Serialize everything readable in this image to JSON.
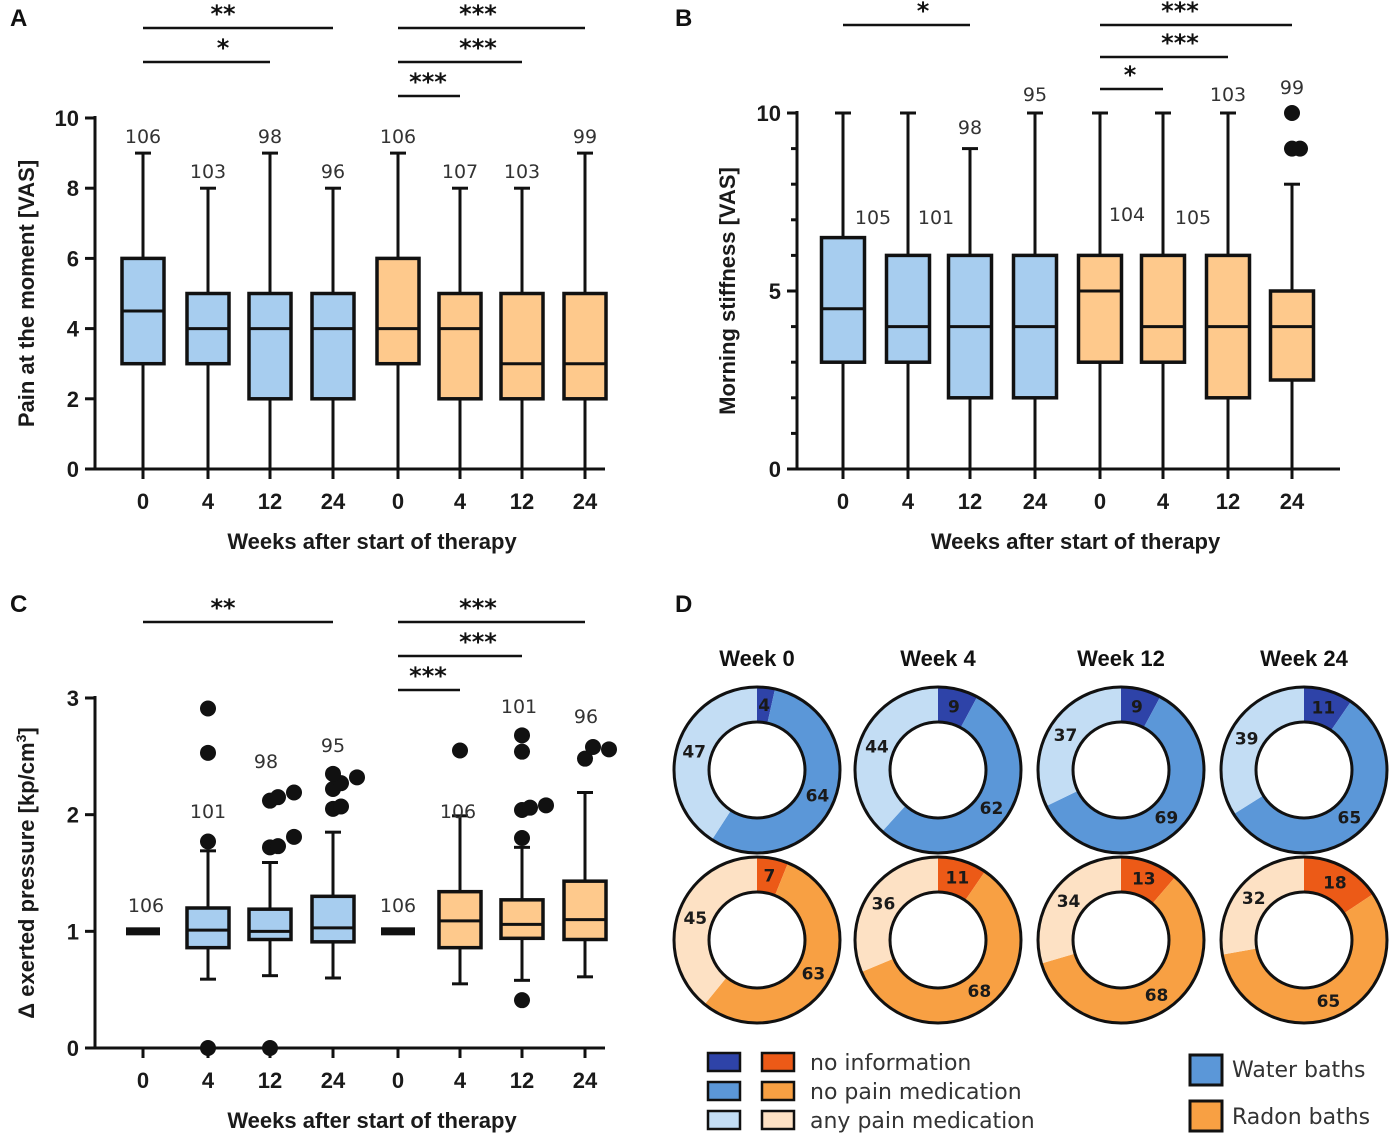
{
  "colors": {
    "water_box": "#a7cdef",
    "radon_box": "#fec98c",
    "water_no_info": "#2e43a8",
    "water_no_med": "#5b97d8",
    "water_any_med": "#c3ddf4",
    "radon_no_info": "#ec5a17",
    "radon_no_med": "#f8a043",
    "radon_any_med": "#fde1c4",
    "water_legend": "#5b97d8",
    "radon_legend": "#f8a043"
  },
  "chart_data": [
    {
      "panel": "A",
      "type": "box",
      "ylabel": "Pain at the moment [VAS]",
      "xlabel": "Weeks after start of therapy",
      "ylim": [
        0,
        10
      ],
      "yticks": [
        "0",
        "2",
        "4",
        "6",
        "8",
        "10"
      ],
      "categories": [
        "0",
        "4",
        "12",
        "24",
        "0",
        "4",
        "12",
        "24"
      ],
      "groups": [
        "water",
        "water",
        "water",
        "water",
        "radon",
        "radon",
        "radon",
        "radon"
      ],
      "boxes": [
        {
          "min": 0,
          "q1": 3,
          "median": 4.5,
          "q3": 6,
          "max": 9,
          "n": "106",
          "outliers": []
        },
        {
          "min": 0,
          "q1": 3,
          "median": 4,
          "q3": 5,
          "max": 8,
          "n": "103",
          "outliers": []
        },
        {
          "min": 0,
          "q1": 2,
          "median": 4,
          "q3": 5,
          "max": 9,
          "n": "98",
          "outliers": []
        },
        {
          "min": 0,
          "q1": 2,
          "median": 4,
          "q3": 5,
          "max": 8,
          "n": "96",
          "outliers": []
        },
        {
          "min": 0,
          "q1": 3,
          "median": 4,
          "q3": 6,
          "max": 9,
          "n": "106",
          "outliers": []
        },
        {
          "min": 0,
          "q1": 2,
          "median": 4,
          "q3": 5,
          "max": 8,
          "n": "107",
          "outliers": []
        },
        {
          "min": 0,
          "q1": 2,
          "median": 3,
          "q3": 5,
          "max": 8,
          "n": "103",
          "outliers": []
        },
        {
          "min": 0,
          "q1": 2,
          "median": 3,
          "q3": 5,
          "max": 9,
          "n": "99",
          "outliers": []
        }
      ],
      "significance": [
        {
          "from": 0,
          "to": 3,
          "stars": "**",
          "level": 1
        },
        {
          "from": 0,
          "to": 2,
          "stars": "*",
          "level": 2
        },
        {
          "from": 4,
          "to": 7,
          "stars": "***",
          "level": 1
        },
        {
          "from": 4,
          "to": 6,
          "stars": "***",
          "level": 2
        },
        {
          "from": 4,
          "to": 5,
          "stars": "***",
          "level": 3
        }
      ]
    },
    {
      "panel": "B",
      "type": "box",
      "ylabel": "Morning stiffness [VAS]",
      "xlabel": "Weeks after start of therapy",
      "ylim": [
        0,
        10
      ],
      "yticks": [
        "0",
        "5",
        "10"
      ],
      "minor_ticks": [
        1,
        2,
        3,
        4,
        6,
        7,
        8,
        9
      ],
      "categories": [
        "0",
        "4",
        "12",
        "24",
        "0",
        "4",
        "12",
        "24"
      ],
      "groups": [
        "water",
        "water",
        "water",
        "water",
        "radon",
        "radon",
        "radon",
        "radon"
      ],
      "boxes": [
        {
          "min": 0,
          "q1": 3,
          "median": 4.5,
          "q3": 6.5,
          "max": 10,
          "n": "105",
          "outliers": []
        },
        {
          "min": 0,
          "q1": 3,
          "median": 4,
          "q3": 6,
          "max": 10,
          "n": "101",
          "outliers": []
        },
        {
          "min": 0,
          "q1": 2,
          "median": 4,
          "q3": 6,
          "max": 9,
          "n": "98",
          "outliers": []
        },
        {
          "min": 0,
          "q1": 2,
          "median": 4,
          "q3": 6,
          "max": 10,
          "n": "95",
          "outliers": []
        },
        {
          "min": 0,
          "q1": 3,
          "median": 5,
          "q3": 6,
          "max": 10,
          "n": "104",
          "outliers": []
        },
        {
          "min": 0,
          "q1": 3,
          "median": 4,
          "q3": 6,
          "max": 10,
          "n": "105",
          "outliers": []
        },
        {
          "min": 0,
          "q1": 2,
          "median": 4,
          "q3": 6,
          "max": 10,
          "n": "103",
          "outliers": []
        },
        {
          "min": 0,
          "q1": 2.5,
          "median": 4,
          "q3": 5,
          "max": 8,
          "n": "99",
          "outliers": [
            9,
            9,
            10
          ]
        }
      ],
      "significance": [
        {
          "from": 0,
          "to": 2,
          "stars": "*",
          "level": 1
        },
        {
          "from": 4,
          "to": 7,
          "stars": "***",
          "level": 1
        },
        {
          "from": 4,
          "to": 6,
          "stars": "***",
          "level": 2
        },
        {
          "from": 4,
          "to": 5,
          "stars": "*",
          "level": 3
        }
      ]
    },
    {
      "panel": "C",
      "type": "box",
      "ylabel": "Δ exerted pressure [kp/cm",
      "ylabel_sup": "3",
      "ylabel_end": "]",
      "xlabel": "Weeks after start of therapy",
      "ylim": [
        0,
        3
      ],
      "yticks": [
        "0",
        "1",
        "2",
        "3"
      ],
      "categories": [
        "0",
        "4",
        "12",
        "24",
        "0",
        "4",
        "12",
        "24"
      ],
      "groups": [
        "water",
        "water",
        "water",
        "water",
        "radon",
        "radon",
        "radon",
        "radon"
      ],
      "boxes": [
        {
          "min": 1,
          "q1": 1,
          "median": 1,
          "q3": 1,
          "max": 1,
          "n": "106",
          "outliers": []
        },
        {
          "min": 0.59,
          "q1": 0.86,
          "median": 1.01,
          "q3": 1.2,
          "max": 1.69,
          "n": "101",
          "outliers": [
            0,
            1.77,
            2.53,
            2.91
          ]
        },
        {
          "min": 0.62,
          "q1": 0.93,
          "median": 1.0,
          "q3": 1.19,
          "max": 1.59,
          "n": "98",
          "outliers": [
            0,
            1.72,
            1.73,
            1.81,
            2.12,
            2.15,
            2.19
          ]
        },
        {
          "min": 0.6,
          "q1": 0.91,
          "median": 1.03,
          "q3": 1.3,
          "max": 1.85,
          "n": "95",
          "outliers": [
            2.05,
            2.07,
            2.22,
            2.27,
            2.32,
            2.35
          ]
        },
        {
          "min": 1,
          "q1": 1,
          "median": 1,
          "q3": 1,
          "max": 1,
          "n": "106",
          "outliers": []
        },
        {
          "min": 0.55,
          "q1": 0.86,
          "median": 1.09,
          "q3": 1.34,
          "max": 1.99,
          "n": "106",
          "outliers": [
            2.55
          ]
        },
        {
          "min": 0.58,
          "q1": 0.94,
          "median": 1.06,
          "q3": 1.27,
          "max": 1.72,
          "n": "101",
          "outliers": [
            0.41,
            1.8,
            2.04,
            2.06,
            2.08,
            2.54,
            2.68
          ]
        },
        {
          "min": 0.61,
          "q1": 0.93,
          "median": 1.1,
          "q3": 1.43,
          "max": 2.19,
          "n": "96",
          "outliers": [
            2.48,
            2.58,
            2.56
          ]
        }
      ],
      "significance": [
        {
          "from": 0,
          "to": 3,
          "stars": "**",
          "level": 1
        },
        {
          "from": 4,
          "to": 7,
          "stars": "***",
          "level": 1
        },
        {
          "from": 4,
          "to": 6,
          "stars": "***",
          "level": 2
        },
        {
          "from": 4,
          "to": 5,
          "stars": "***",
          "level": 3
        }
      ]
    },
    {
      "panel": "D",
      "type": "pie",
      "variant": "donut",
      "weeks": [
        "Week 0",
        "Week 4",
        "Week 12",
        "Week 24"
      ],
      "water": [
        {
          "no_information": 4,
          "no_pain_medication": 64,
          "any_pain_medication": 47
        },
        {
          "no_information": 9,
          "no_pain_medication": 62,
          "any_pain_medication": 44
        },
        {
          "no_information": 9,
          "no_pain_medication": 69,
          "any_pain_medication": 37
        },
        {
          "no_information": 11,
          "no_pain_medication": 65,
          "any_pain_medication": 39
        }
      ],
      "radon": [
        {
          "no_information": 7,
          "no_pain_medication": 63,
          "any_pain_medication": 45
        },
        {
          "no_information": 11,
          "no_pain_medication": 68,
          "any_pain_medication": 36
        },
        {
          "no_information": 13,
          "no_pain_medication": 68,
          "any_pain_medication": 34
        },
        {
          "no_information": 18,
          "no_pain_medication": 65,
          "any_pain_medication": 32
        }
      ],
      "legend": {
        "categories": [
          "no information",
          "no pain medication",
          "any pain medication"
        ],
        "groups": [
          "Water baths",
          "Radon baths"
        ]
      }
    }
  ]
}
